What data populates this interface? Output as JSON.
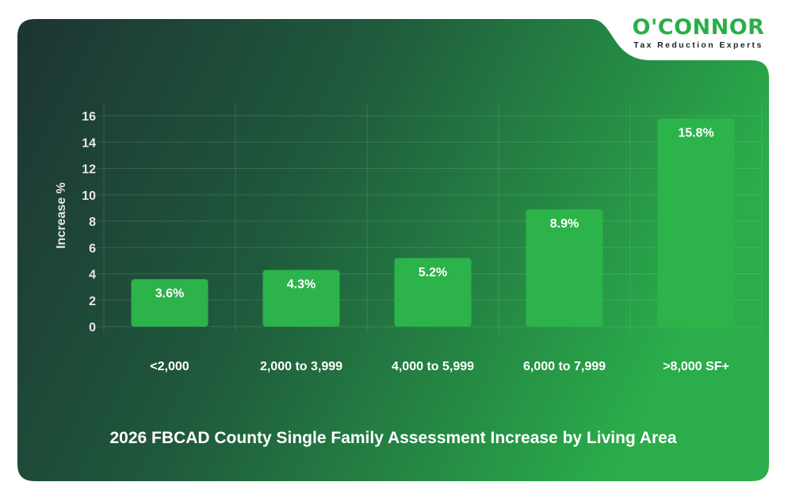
{
  "logo": {
    "name": "O'CONNOR",
    "tagline": "Tax Reduction Experts"
  },
  "colors": {
    "bar": "#2cb34a",
    "bg_left": "#1d3434",
    "bg_right": "#2aad4a",
    "logo_green": "#2aae4a"
  },
  "chart_data": {
    "type": "bar",
    "title": "2026 FBCAD County Single Family Assessment Increase by Living Area",
    "xlabel": "",
    "ylabel": "Increase %",
    "categories": [
      "<2,000",
      "2,000 to 3,999",
      "4,000 to 5,999",
      "6,000 to 7,999",
      ">8,000 SF+"
    ],
    "values": [
      3.6,
      4.3,
      5.2,
      8.9,
      15.8
    ],
    "data_labels": [
      "3.6%",
      "4.3%",
      "5.2%",
      "8.9%",
      "15.8%"
    ],
    "ylim": [
      0,
      17
    ],
    "yticks": [
      0,
      2,
      4,
      6,
      8,
      10,
      12,
      14,
      16
    ],
    "grid": true,
    "legend": "none"
  }
}
